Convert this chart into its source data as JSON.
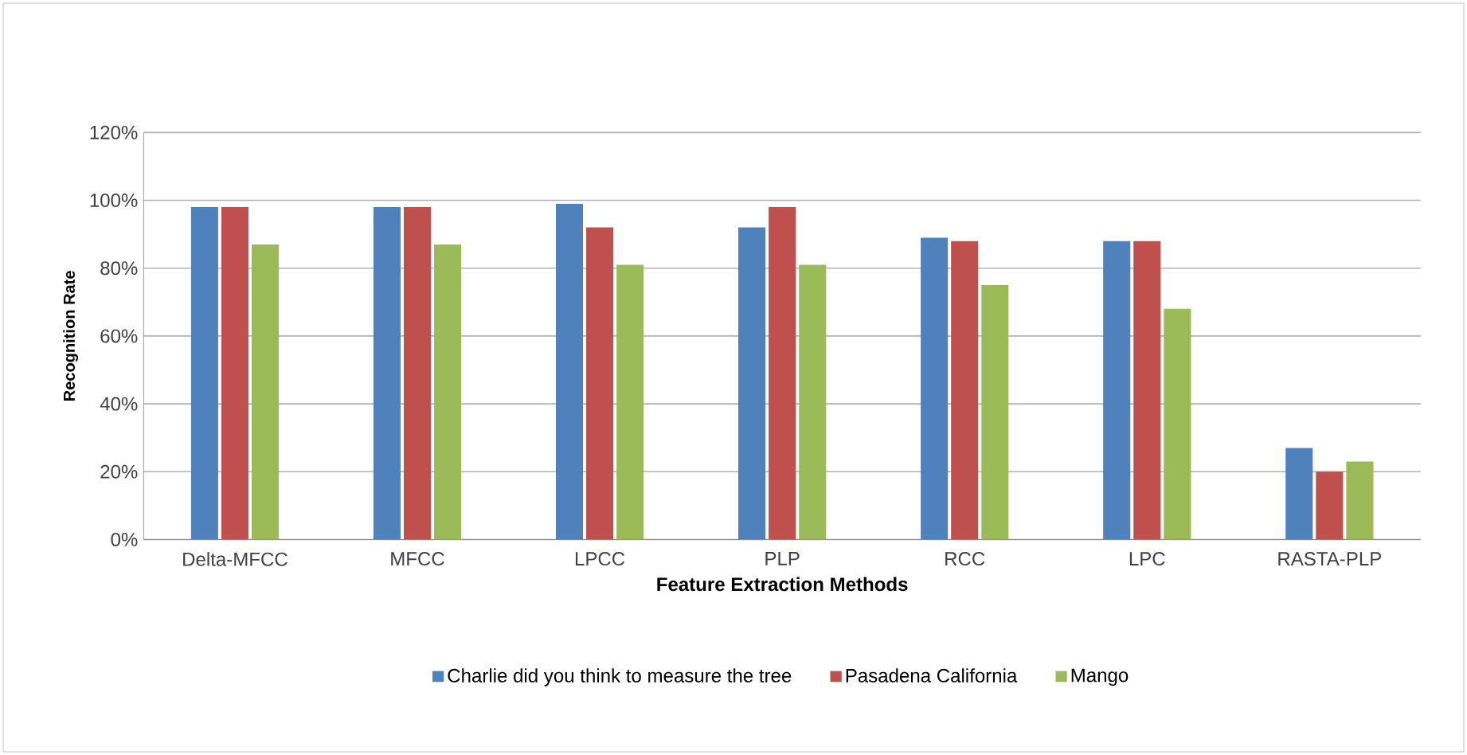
{
  "chart_data": {
    "type": "bar",
    "xlabel": "Feature Extraction Methods",
    "ylabel": "Recognition Rate",
    "categories": [
      "Delta-MFCC",
      "MFCC",
      "LPCC",
      "PLP",
      "RCC",
      "LPC",
      "RASTA-PLP"
    ],
    "series": [
      {
        "name": "Charlie did you think to measure the tree",
        "color": "#4f81bd",
        "values": [
          98,
          98,
          99,
          92,
          89,
          88,
          27
        ]
      },
      {
        "name": "Pasadena California",
        "color": "#c0504d",
        "values": [
          98,
          98,
          92,
          98,
          88,
          88,
          20
        ]
      },
      {
        "name": "Mango",
        "color": "#9bbb59",
        "values": [
          87,
          87,
          81,
          81,
          75,
          68,
          23
        ]
      }
    ],
    "ylim": [
      0,
      120
    ],
    "yticks": [
      {
        "value": 0,
        "label": "0%"
      },
      {
        "value": 20,
        "label": "20%"
      },
      {
        "value": 40,
        "label": "40%"
      },
      {
        "value": 60,
        "label": "60%"
      },
      {
        "value": 80,
        "label": "80%"
      },
      {
        "value": 100,
        "label": "100%"
      },
      {
        "value": 120,
        "label": "120%"
      }
    ],
    "grid": "y",
    "legend": "bottom"
  }
}
